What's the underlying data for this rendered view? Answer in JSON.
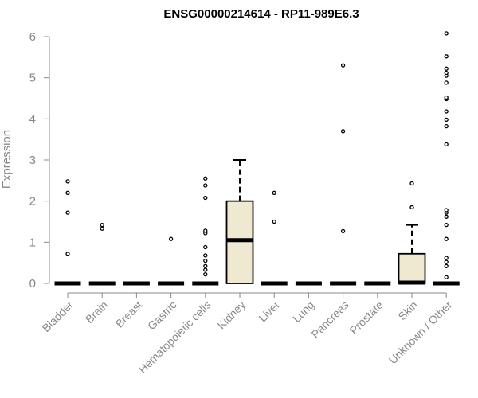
{
  "chart_data": {
    "type": "boxplot",
    "title": "ENSG00000214614 - RP11-989E6.3",
    "xlabel": "",
    "ylabel": "Expression",
    "ylim": [
      0,
      6
    ],
    "yticks": [
      0,
      1,
      2,
      3,
      4,
      5,
      6
    ],
    "grid": false,
    "box_fill": "#efe9d1",
    "categories": [
      "Bladder",
      "Brain",
      "Breast",
      "Gastric",
      "Hematopoietic cells",
      "Kidney",
      "Liver",
      "Lung",
      "Pancreas",
      "Prostate",
      "Skin",
      "Unknown / Other"
    ],
    "boxes": [
      {
        "q1": 0,
        "median": 0,
        "q3": 0,
        "whisker_low": 0,
        "whisker_high": 0,
        "outliers": [
          0.72,
          1.72,
          2.2,
          2.48
        ]
      },
      {
        "q1": 0,
        "median": 0,
        "q3": 0,
        "whisker_low": 0,
        "whisker_high": 0,
        "outliers": [
          1.33,
          1.42
        ]
      },
      {
        "q1": 0,
        "median": 0,
        "q3": 0,
        "whisker_low": 0,
        "whisker_high": 0,
        "outliers": []
      },
      {
        "q1": 0,
        "median": 0,
        "q3": 0,
        "whisker_low": 0,
        "whisker_high": 0,
        "outliers": [
          1.08
        ]
      },
      {
        "q1": 0,
        "median": 0,
        "q3": 0,
        "whisker_low": 0,
        "whisker_high": 0,
        "outliers": [
          0.22,
          0.33,
          0.42,
          0.55,
          0.68,
          0.88,
          1.22,
          1.28,
          2.08,
          2.38,
          2.55
        ]
      },
      {
        "q1": 0,
        "median": 1.05,
        "q3": 2.0,
        "whisker_low": 0,
        "whisker_high": 3.0,
        "outliers": []
      },
      {
        "q1": 0,
        "median": 0,
        "q3": 0,
        "whisker_low": 0,
        "whisker_high": 0,
        "outliers": [
          1.5,
          2.2
        ]
      },
      {
        "q1": 0,
        "median": 0,
        "q3": 0,
        "whisker_low": 0,
        "whisker_high": 0,
        "outliers": []
      },
      {
        "q1": 0,
        "median": 0,
        "q3": 0,
        "whisker_low": 0,
        "whisker_high": 0,
        "outliers": [
          1.27,
          3.7,
          5.3
        ]
      },
      {
        "q1": 0,
        "median": 0,
        "q3": 0,
        "whisker_low": 0,
        "whisker_high": 0,
        "outliers": []
      },
      {
        "q1": 0,
        "median": 0.02,
        "q3": 0.72,
        "whisker_low": 0,
        "whisker_high": 1.42,
        "outliers": [
          1.85,
          2.43
        ]
      },
      {
        "q1": 0,
        "median": 0,
        "q3": 0,
        "whisker_low": 0,
        "whisker_high": 0,
        "outliers": [
          0.15,
          0.42,
          0.52,
          0.62,
          1.08,
          1.42,
          1.62,
          1.72,
          1.78,
          3.38,
          3.82,
          3.98,
          4.18,
          4.48,
          4.52,
          4.88,
          5.05,
          5.12,
          5.22,
          5.52,
          6.08
        ]
      }
    ]
  }
}
